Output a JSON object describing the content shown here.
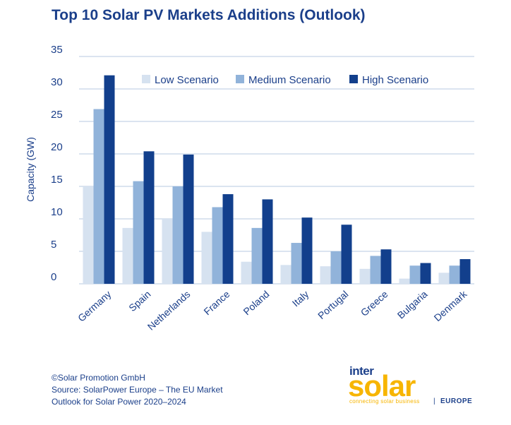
{
  "colors": {
    "title": "#1b3f8a",
    "text": "#1b3f8a",
    "grid": "#b7c9e2",
    "low": "#d6e2f0",
    "medium": "#91b3da",
    "high": "#123f8c",
    "logo_yellow": "#f7b500"
  },
  "chart_data": {
    "type": "bar",
    "title": "Top 10 Solar PV Markets Additions (Outlook)",
    "ylabel": "Capacity (GW)",
    "xlabel": "",
    "ylim": [
      0,
      35
    ],
    "yticks": [
      0,
      5,
      10,
      15,
      20,
      25,
      30,
      35
    ],
    "grid": true,
    "legend_position": "top",
    "categories": [
      "Germany",
      "Spain",
      "Netherlands",
      "France",
      "Poland",
      "Italy",
      "Portugal",
      "Greece",
      "Bulgaria",
      "Denmark"
    ],
    "series": [
      {
        "name": "Low Scenario",
        "color": "#d6e2f0",
        "values": [
          15,
          8.6,
          10,
          8,
          3.4,
          2.9,
          2.7,
          2.3,
          0.8,
          1.7
        ]
      },
      {
        "name": "Medium Scenario",
        "color": "#91b3da",
        "values": [
          26.9,
          15.8,
          15,
          11.8,
          8.6,
          6.3,
          5,
          4.3,
          2.8,
          2.8
        ]
      },
      {
        "name": "High Scenario",
        "color": "#123f8c",
        "values": [
          32.1,
          20.4,
          19.9,
          13.8,
          13,
          10.2,
          9.1,
          5.3,
          3.2,
          3.8
        ]
      }
    ]
  },
  "footer": {
    "line1": "©Solar Promotion GmbH",
    "line2": "Source: SolarPower Europe – The EU Market",
    "line3": "Outlook for Solar Power 2020–2024"
  },
  "logo": {
    "inter": "inter",
    "solar": "solar",
    "tagline": "connecting solar business",
    "separator": "|",
    "region": "EUROPE"
  }
}
